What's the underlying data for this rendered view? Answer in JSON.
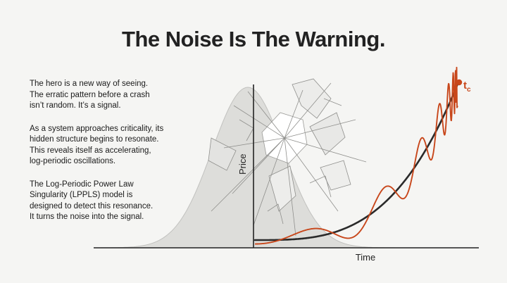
{
  "title": "The Noise Is The Warning.",
  "paragraphs": [
    [
      "The hero is a new way of seeing.",
      "The erratic pattern before a crash",
      "isn’t random. It’s a signal."
    ],
    [
      "As a system approaches criticality, its",
      "hidden structure begins to resonate.",
      "This reveals itself as accelerating,",
      "log-periodic oscillations."
    ],
    [
      "The Log-Periodic Power Law",
      "Singularity (LPPLS) model is",
      "designed to detect this resonance.",
      "It turns the noise into the signal."
    ]
  ],
  "diagram": {
    "y_axis_label": "Price",
    "x_axis_label": "Time",
    "critical_time_label": "t",
    "critical_time_subscript": "c",
    "colors": {
      "trend_line": "#2a2a2a",
      "oscillation": "#c8471b",
      "bell_fill": "#d9d9d6",
      "axis": "#222222"
    }
  }
}
